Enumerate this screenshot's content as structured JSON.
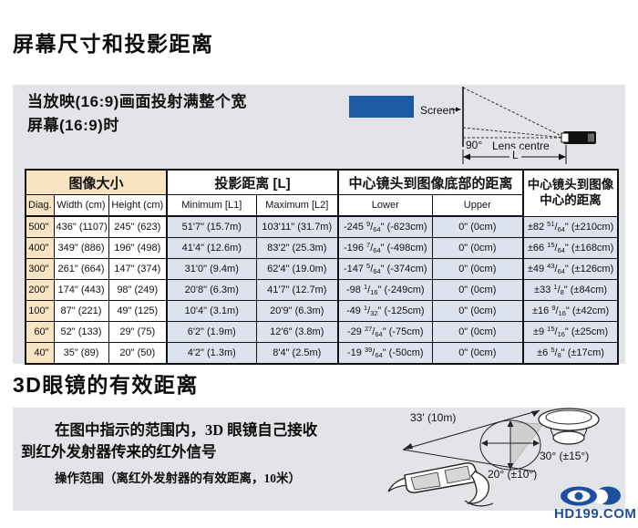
{
  "page": {
    "section1_title": "屏幕尺寸和投影距离",
    "section2_title": "3D眼镜的有效距离"
  },
  "icons": {
    "arrow_right": "→"
  },
  "projection_box": {
    "heading_line1": "当放映(16:9)画面投射满整个宽",
    "heading_line2": "屏幕(16:9)时",
    "diagram": {
      "screen_label": "Screen",
      "angle_label": "90°",
      "lens_label": "Lens centre",
      "distance_label": "L"
    }
  },
  "table": {
    "group_headers": [
      "图像大小",
      "投影距离 [L]",
      "中心镜头到图像底部的距离",
      "中心镜头到图像中心的距离"
    ],
    "sub_headers": [
      "Diag.",
      "Width (cm)",
      "Height (cm)",
      "Minimum [L1]",
      "Maximum [L2]",
      "Lower",
      "Upper"
    ],
    "rows": [
      [
        "500\"",
        "436\" (1107)",
        "245\" (623)",
        "51'7\" (15.7m)",
        "103'11\" (31.7m)",
        "-245 9/64\" (-623cm)",
        "0\" (0cm)",
        "±82 51/64\" (±210cm)"
      ],
      [
        "400\"",
        "349\" (886)",
        "196\" (498)",
        "41'4\" (12.6m)",
        "83'2\" (25.3m)",
        "-196 7/64\" (-498cm)",
        "0\" (0cm)",
        "±66 15/64\" (±168cm)"
      ],
      [
        "300\"",
        "261\" (664)",
        "147\" (374)",
        "31'0\" (9.4m)",
        "62'4\" (19.0m)",
        "-147 5/64\" (-374cm)",
        "0\" (0cm)",
        "±49 43/64\" (±126cm)"
      ],
      [
        "200\"",
        "174\" (443)",
        "98\" (249)",
        "20'8\" (6.3m)",
        "41'7\" (12.7m)",
        "-98 1/16\" (-249cm)",
        "0\" (0cm)",
        "±33 1/8\" (±84cm)"
      ],
      [
        "100\"",
        "87\" (221)",
        "49\" (125)",
        "10'4\" (3.1m)",
        "20'9\" (6.3m)",
        "-49 1/32\" (-125cm)",
        "0\" (0cm)",
        "±16 9/16\" (±42cm)"
      ],
      [
        "60\"",
        "52\" (133)",
        "29\" (75)",
        "6'2\" (1.9m)",
        "12'6\" (3.8m)",
        "-29 27/64\" (-75cm)",
        "0\" (0cm)",
        "±9 15/16\" (±25cm)"
      ],
      [
        "40\"",
        "35\" (89)",
        "20\" (50)",
        "4'2\" (1.3m)",
        "8'4\" (2.5m)",
        "-19 39/64\" (-50cm)",
        "0\" (0cm)",
        "±6 5/8\" (±17cm)"
      ]
    ]
  },
  "glasses_box": {
    "text_line1": "在图中指示的范围内，3D 眼镜自己接收",
    "text_line2": "到红外发射器传来的红外信号",
    "text_line3": "操作范围（离红外发射器的有效距离，10米）",
    "diagram": {
      "distance_label": "33' (10m)",
      "horizontal_angle_label": "30° (±15°)",
      "vertical_angle_label": "20° (±10°)"
    }
  },
  "watermark": {
    "text": "HD199.COM"
  },
  "colors": {
    "box_bg": "#e2e4e8",
    "table_peach": "#f8e3c2",
    "table_cell_blue": "#dce2ee",
    "screen_blue": "#1c5aa5",
    "watermark_blue": "#1d4f9c"
  }
}
